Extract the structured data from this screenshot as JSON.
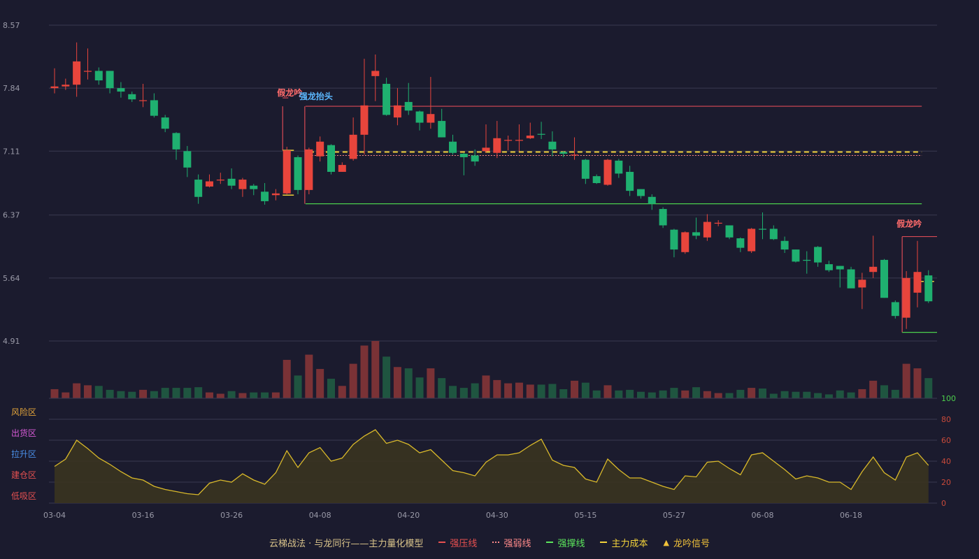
{
  "legend": {
    "title": "云梯战法 · 与龙同行——主力量化模型",
    "items": [
      {
        "label": "强压线",
        "color": "#e85050",
        "style": "solid"
      },
      {
        "label": "强弱线",
        "color": "#ff8a8a",
        "style": "dot"
      },
      {
        "label": "强撑线",
        "color": "#5ce65c",
        "style": "solid"
      },
      {
        "label": "主力成本",
        "color": "#f2d23a",
        "style": "dash"
      },
      {
        "label": "龙吟信号",
        "color": "#f2c23a",
        "style": "triangle",
        "icon": "triangle-icon"
      }
    ]
  },
  "colors": {
    "background": "#1b1b2e",
    "up": "#e8453c",
    "down": "#1fb070",
    "grid": "#3a3a50",
    "axis_text": "#9a9aa8",
    "oscillator_line": "#d9b92a",
    "oscillator_fill": "#3a3420"
  },
  "chart_data": {
    "type": "candlestick",
    "price_axis": {
      "ticks": [
        8.57,
        7.84,
        7.11,
        6.37,
        5.64,
        4.91
      ],
      "ylim": [
        4.91,
        8.57
      ]
    },
    "x_ticks": [
      {
        "label": "03-04",
        "index": 0
      },
      {
        "label": "03-16",
        "index": 8
      },
      {
        "label": "03-26",
        "index": 16
      },
      {
        "label": "04-08",
        "index": 24
      },
      {
        "label": "04-20",
        "index": 32
      },
      {
        "label": "04-30",
        "index": 40
      },
      {
        "label": "05-15",
        "index": 48
      },
      {
        "label": "05-27",
        "index": 56
      },
      {
        "label": "06-08",
        "index": 64
      },
      {
        "label": "06-18",
        "index": 72
      }
    ],
    "candles": [
      [
        7.84,
        7.86,
        8.07,
        7.78
      ],
      [
        7.86,
        7.88,
        7.95,
        7.82
      ],
      [
        7.88,
        8.15,
        8.37,
        7.74
      ],
      [
        8.03,
        8.04,
        8.3,
        7.94
      ],
      [
        8.04,
        7.93,
        8.08,
        7.88
      ],
      [
        8.04,
        7.84,
        8.04,
        7.78
      ],
      [
        7.84,
        7.8,
        7.91,
        7.73
      ],
      [
        7.77,
        7.71,
        7.8,
        7.68
      ],
      [
        7.7,
        7.7,
        7.89,
        7.62
      ],
      [
        7.7,
        7.52,
        7.78,
        7.5
      ],
      [
        7.5,
        7.37,
        7.53,
        7.33
      ],
      [
        7.32,
        7.13,
        7.33,
        7.01
      ],
      [
        7.11,
        6.92,
        7.17,
        6.81
      ],
      [
        6.78,
        6.58,
        6.84,
        6.5
      ],
      [
        6.7,
        6.76,
        6.84,
        6.69
      ],
      [
        6.77,
        6.78,
        6.86,
        6.73
      ],
      [
        6.79,
        6.71,
        6.91,
        6.67
      ],
      [
        6.67,
        6.78,
        6.8,
        6.58
      ],
      [
        6.71,
        6.67,
        6.73,
        6.6
      ],
      [
        6.64,
        6.53,
        6.74,
        6.49
      ],
      [
        6.6,
        6.62,
        6.67,
        6.54
      ],
      [
        6.62,
        7.12,
        7.16,
        6.61
      ],
      [
        7.04,
        6.66,
        7.06,
        6.61
      ],
      [
        6.66,
        7.13,
        7.15,
        6.61
      ],
      [
        7.05,
        7.22,
        7.28,
        6.99
      ],
      [
        7.18,
        6.87,
        7.19,
        6.84
      ],
      [
        6.87,
        6.95,
        6.98,
        6.87
      ],
      [
        7.02,
        7.3,
        7.5,
        7.0
      ],
      [
        7.3,
        7.64,
        8.18,
        7.07
      ],
      [
        7.98,
        8.04,
        8.23,
        7.69
      ],
      [
        7.89,
        7.53,
        7.96,
        7.52
      ],
      [
        7.5,
        7.64,
        7.84,
        7.41
      ],
      [
        7.68,
        7.58,
        7.9,
        7.53
      ],
      [
        7.57,
        7.44,
        7.58,
        7.35
      ],
      [
        7.44,
        7.54,
        7.97,
        7.37
      ],
      [
        7.46,
        7.27,
        7.6,
        7.27
      ],
      [
        7.22,
        7.09,
        7.3,
        7.07
      ],
      [
        7.08,
        7.04,
        7.09,
        6.83
      ],
      [
        7.06,
        6.99,
        7.13,
        6.94
      ],
      [
        7.11,
        7.15,
        7.42,
        7.09
      ],
      [
        7.09,
        7.26,
        7.46,
        7.03
      ],
      [
        7.23,
        7.24,
        7.29,
        7.12
      ],
      [
        7.23,
        7.24,
        7.42,
        7.11
      ],
      [
        7.26,
        7.29,
        7.44,
        7.25
      ],
      [
        7.31,
        7.3,
        7.45,
        7.25
      ],
      [
        7.22,
        7.13,
        7.34,
        7.05
      ],
      [
        7.1,
        7.08,
        7.11,
        7.04
      ],
      [
        7.07,
        7.07,
        7.27,
        7.01
      ],
      [
        7.01,
        6.79,
        7.02,
        6.73
      ],
      [
        6.82,
        6.74,
        6.84,
        6.73
      ],
      [
        6.72,
        7.01,
        7.02,
        6.71
      ],
      [
        7.0,
        6.85,
        7.02,
        6.8
      ],
      [
        6.87,
        6.65,
        6.94,
        6.59
      ],
      [
        6.67,
        6.59,
        6.67,
        6.56
      ],
      [
        6.58,
        6.5,
        6.61,
        6.43
      ],
      [
        6.44,
        6.25,
        6.46,
        6.22
      ],
      [
        6.2,
        5.97,
        6.21,
        5.88
      ],
      [
        5.94,
        6.17,
        6.18,
        5.92
      ],
      [
        6.17,
        6.13,
        6.34,
        6.09
      ],
      [
        6.11,
        6.29,
        6.38,
        6.07
      ],
      [
        6.27,
        6.28,
        6.31,
        6.24
      ],
      [
        6.25,
        6.11,
        6.25,
        6.09
      ],
      [
        6.1,
        5.99,
        6.11,
        5.94
      ],
      [
        5.95,
        6.21,
        6.22,
        5.93
      ],
      [
        6.21,
        6.2,
        6.4,
        6.09
      ],
      [
        6.21,
        6.09,
        6.25,
        6.08
      ],
      [
        6.07,
        5.97,
        6.12,
        5.93
      ],
      [
        5.97,
        5.83,
        5.97,
        5.82
      ],
      [
        5.85,
        5.84,
        5.95,
        5.69
      ],
      [
        6.0,
        5.82,
        6.01,
        5.77
      ],
      [
        5.8,
        5.73,
        5.84,
        5.71
      ],
      [
        5.78,
        5.74,
        5.78,
        5.53
      ],
      [
        5.74,
        5.52,
        5.77,
        5.53
      ],
      [
        5.53,
        5.62,
        5.7,
        5.28
      ],
      [
        5.71,
        5.77,
        6.13,
        5.64
      ],
      [
        5.85,
        5.41,
        5.86,
        5.41
      ],
      [
        5.36,
        5.2,
        5.38,
        5.17
      ],
      [
        5.18,
        5.64,
        5.72,
        5.05
      ],
      [
        5.47,
        5.71,
        6.07,
        5.3
      ],
      [
        5.67,
        5.37,
        5.73,
        5.35
      ]
    ],
    "volume": [
      14,
      9,
      23,
      20,
      19,
      13,
      11,
      10,
      13,
      11,
      16,
      16,
      16,
      17,
      9,
      7,
      11,
      8,
      9,
      9,
      9,
      59,
      35,
      67,
      45,
      30,
      19,
      53,
      81,
      88,
      64,
      48,
      46,
      32,
      46,
      31,
      19,
      16,
      23,
      35,
      28,
      23,
      24,
      21,
      21,
      22,
      14,
      27,
      24,
      12,
      20,
      12,
      13,
      10,
      9,
      12,
      16,
      12,
      17,
      11,
      8,
      8,
      13,
      16,
      15,
      7,
      11,
      10,
      10,
      8,
      6,
      12,
      9,
      14,
      27,
      20,
      13,
      53,
      46,
      31
    ],
    "oscillator": {
      "zones": [
        "风险区",
        "出货区",
        "拉升区",
        "建仓区",
        "低吸区"
      ],
      "ticks": [
        100,
        80,
        60,
        40,
        20,
        0
      ],
      "ylim": [
        0,
        100
      ],
      "values": [
        35,
        42,
        60,
        52,
        43,
        37,
        30,
        24,
        22,
        16,
        13,
        11,
        9,
        8,
        19,
        22,
        20,
        28,
        22,
        18,
        29,
        50,
        34,
        48,
        53,
        40,
        43,
        56,
        64,
        70,
        57,
        60,
        56,
        48,
        51,
        41,
        31,
        29,
        26,
        39,
        46,
        46,
        48,
        55,
        61,
        41,
        36,
        34,
        23,
        20,
        42,
        32,
        24,
        24,
        20,
        16,
        13,
        26,
        25,
        39,
        40,
        33,
        27,
        46,
        48,
        40,
        32,
        23,
        26,
        24,
        20,
        20,
        13,
        30,
        44,
        29,
        22,
        44,
        48,
        36
      ]
    },
    "overlays": {
      "resistance": [
        {
          "from": 22,
          "to": 77,
          "value": 7.63
        }
      ],
      "weak_line": [
        {
          "from": 23,
          "to": 77,
          "value": 7.06
        }
      ],
      "support": [
        {
          "from": 23,
          "to": 77,
          "value": 6.5
        }
      ],
      "main_cost": [
        {
          "from": 23,
          "to": 77,
          "value": 7.1
        }
      ],
      "box_left": [
        {
          "from_index": 21,
          "top": 7.63,
          "bottom": 7.12,
          "side": "resistance"
        },
        {
          "from_index": 23,
          "top": 7.63,
          "bottom": 6.5,
          "side": "resistance"
        },
        {
          "from_index": 23,
          "top": 6.5,
          "bottom": 6.5,
          "side": "support"
        }
      ],
      "late_resistance": {
        "from": 77,
        "to": 79,
        "value": 6.12
      },
      "late_support": {
        "from": 77,
        "to": 79,
        "value": 5.01
      },
      "short_cost_marks": [
        {
          "index": 21,
          "top": 7.12,
          "bottom": 6.6
        }
      ]
    },
    "signals": [
      {
        "index": 21,
        "label": "假龙吟",
        "color": "#ff6b6b",
        "price": 7.72
      },
      {
        "index": 23,
        "label": "强龙抬头",
        "color": "#5bb8ff",
        "price": 7.68
      },
      {
        "index": 77,
        "label": "假龙吟",
        "color": "#ff6b6b",
        "price": 6.2
      }
    ]
  }
}
